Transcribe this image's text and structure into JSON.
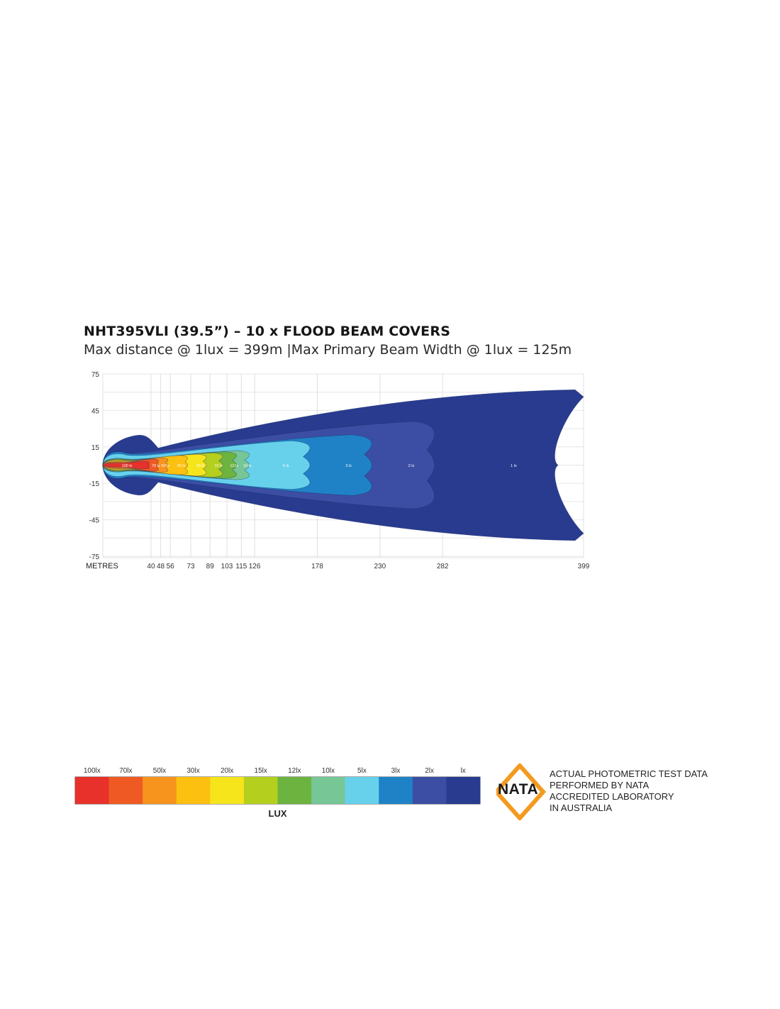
{
  "header": {
    "title": "NHT395VLI (39.5”) – 10 x FLOOD BEAM COVERS",
    "subtitle": "Max distance @ 1lux = 399m  |Max Primary  Beam Width @ 1lux = 125m"
  },
  "chart_data": {
    "type": "heatmap",
    "xlabel": "METRES",
    "y_ticks": [
      75,
      45,
      15,
      -15,
      -45,
      -75
    ],
    "x_ticks": [
      40,
      48,
      56,
      73,
      89,
      103,
      115,
      126,
      178,
      230,
      282,
      399
    ],
    "ylim": [
      -75,
      75
    ],
    "xlim": [
      0,
      399
    ],
    "grid": true,
    "zones": [
      {
        "label": "100 lx",
        "lux": 100,
        "color": "#e8312a",
        "reach_m": 40,
        "half_width_m": 3
      },
      {
        "label": "70 lx",
        "lux": 70,
        "color": "#ef5a24",
        "reach_m": 48,
        "half_width_m": 5
      },
      {
        "label": "50 lx",
        "lux": 50,
        "color": "#f7941d",
        "reach_m": 56,
        "half_width_m": 6
      },
      {
        "label": "30 lx",
        "lux": 30,
        "color": "#fcc010",
        "reach_m": 73,
        "half_width_m": 8
      },
      {
        "label": "20 lx",
        "lux": 20,
        "color": "#f6e51b",
        "reach_m": 89,
        "half_width_m": 9
      },
      {
        "label": "15 lx",
        "lux": 15,
        "color": "#b5cf1e",
        "reach_m": 103,
        "half_width_m": 10
      },
      {
        "label": "12 lx",
        "lux": 12,
        "color": "#6db33f",
        "reach_m": 115,
        "half_width_m": 11
      },
      {
        "label": "10 lx",
        "lux": 10,
        "color": "#77c796",
        "reach_m": 126,
        "half_width_m": 12
      },
      {
        "label": "5 lx",
        "lux": 5,
        "color": "#67d1ec",
        "reach_m": 178,
        "half_width_m": 20
      },
      {
        "label": "3 lx",
        "lux": 3,
        "color": "#1f82c6",
        "reach_m": 230,
        "half_width_m": 25
      },
      {
        "label": "2 lx",
        "lux": 2,
        "color": "#3c4ea3",
        "reach_m": 282,
        "half_width_m": 36
      },
      {
        "label": "1 lx",
        "lux": 1,
        "color": "#283b8f",
        "reach_m": 399,
        "half_width_m": 62
      }
    ]
  },
  "legend": {
    "labels": [
      "100lx",
      "70lx",
      "50lx",
      "30lx",
      "20lx",
      "15lx",
      "12lx",
      "10lx",
      "5lx",
      "3lx",
      "2lx",
      "lx"
    ],
    "colors": [
      "#e8312a",
      "#ef5a24",
      "#f7941d",
      "#fcc010",
      "#f6e51b",
      "#b5cf1e",
      "#6db33f",
      "#77c796",
      "#67d1ec",
      "#1f82c6",
      "#3c4ea3",
      "#283b8f"
    ],
    "title": "LUX"
  },
  "nata": {
    "logo_text": "NATA",
    "logo_color": "#f39a1e",
    "lines": [
      "ACTUAL PHOTOMETRIC TEST DATA",
      "PERFORMED BY NATA",
      "ACCREDITED LABORATORY",
      "IN AUSTRALIA"
    ]
  }
}
